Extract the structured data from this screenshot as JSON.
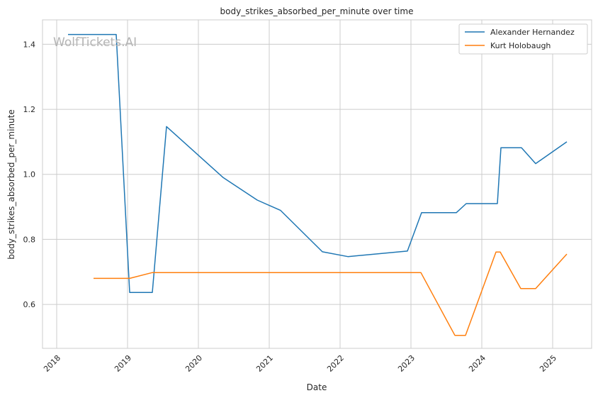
{
  "chart_data": {
    "type": "line",
    "title": "body_strikes_absorbed_per_minute over time",
    "xlabel": "Date",
    "ylabel": "body_strikes_absorbed_per_minute",
    "watermark": "WolfTickets.AI",
    "xlim": [
      2017.8,
      2025.55
    ],
    "ylim": [
      0.465,
      1.475
    ],
    "x_ticks": [
      2018,
      2019,
      2020,
      2021,
      2022,
      2023,
      2024,
      2025
    ],
    "x_tick_labels": [
      "2018",
      "2019",
      "2020",
      "2021",
      "2022",
      "2023",
      "2024",
      "2025"
    ],
    "y_ticks": [
      0.6,
      0.8,
      1.0,
      1.2,
      1.4
    ],
    "y_tick_labels": [
      "0.6",
      "0.8",
      "1.0",
      "1.2",
      "1.4"
    ],
    "grid": true,
    "legend_position": "top-right",
    "series": [
      {
        "name": "Alexander Hernandez",
        "color": "#1f77b4",
        "x": [
          2018.16,
          2018.84,
          2019.03,
          2019.35,
          2019.55,
          2020.35,
          2020.83,
          2021.16,
          2021.75,
          2022.11,
          2022.95,
          2023.15,
          2023.64,
          2023.78,
          2024.22,
          2024.27,
          2024.56,
          2024.76,
          2025.2
        ],
        "y": [
          1.43,
          1.43,
          0.637,
          0.637,
          1.147,
          0.99,
          0.921,
          0.889,
          0.762,
          0.747,
          0.764,
          0.882,
          0.882,
          0.91,
          0.91,
          1.082,
          1.082,
          1.033,
          1.1
        ]
      },
      {
        "name": "Kurt Holobaugh",
        "color": "#ff7f0e",
        "x": [
          2018.52,
          2019.03,
          2019.35,
          2023.14,
          2023.62,
          2023.77,
          2024.2,
          2024.26,
          2024.55,
          2024.76,
          2025.2
        ],
        "y": [
          0.68,
          0.68,
          0.698,
          0.698,
          0.505,
          0.505,
          0.761,
          0.761,
          0.649,
          0.649,
          0.755
        ]
      }
    ]
  }
}
